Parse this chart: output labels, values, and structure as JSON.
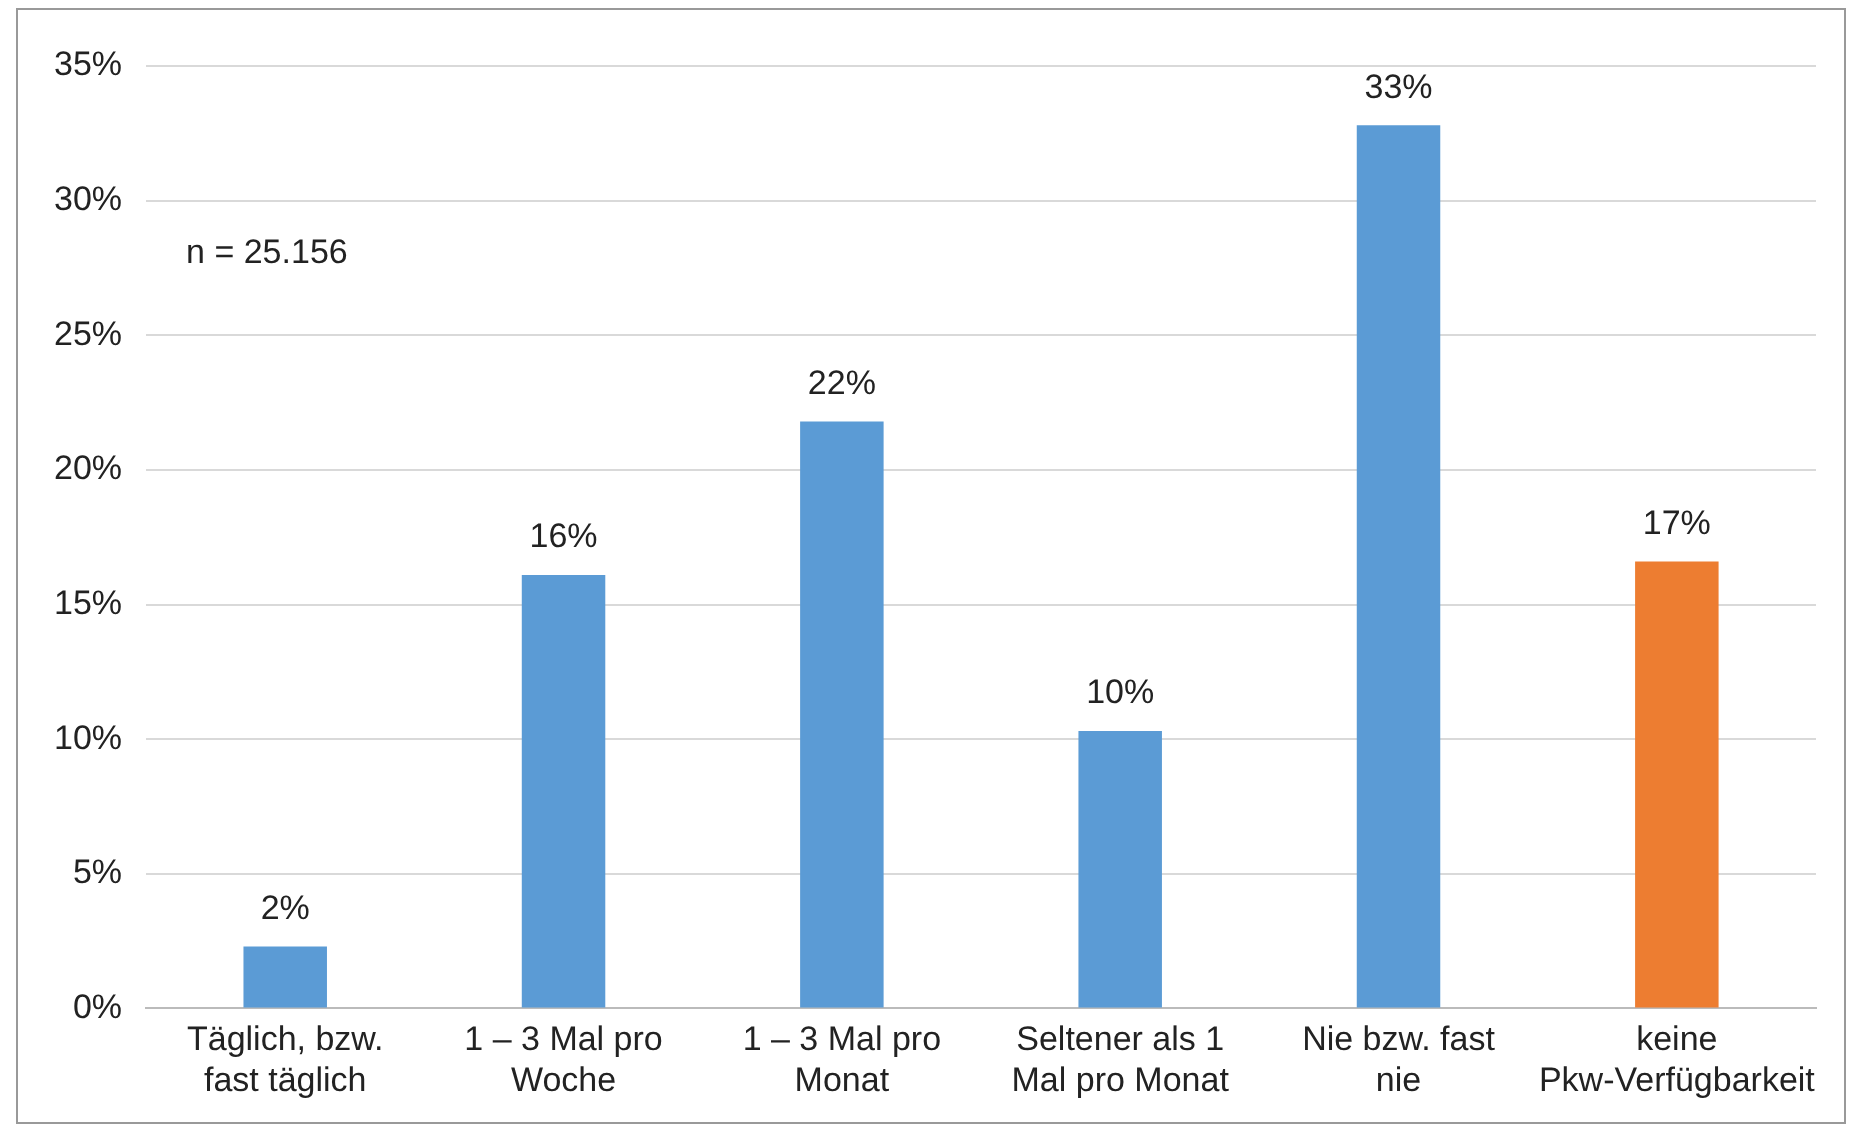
{
  "chart_data": {
    "type": "bar",
    "categories": [
      "Täglich, bzw. fast täglich",
      "1 – 3 Mal pro Woche",
      "1 – 3 Mal pro Monat",
      "Seltener als 1 Mal pro Monat",
      "Nie bzw. fast nie",
      "keine Pkw-Verfügbarkeit"
    ],
    "values": [
      2.3,
      16.1,
      21.8,
      10.3,
      32.8,
      16.6
    ],
    "colors": [
      "#5b9bd5",
      "#5b9bd5",
      "#5b9bd5",
      "#5b9bd5",
      "#5b9bd5",
      "#ed7d31"
    ],
    "value_labels": [
      "2%",
      "16%",
      "22%",
      "10%",
      "33%",
      "17%"
    ],
    "ylim": [
      0,
      35
    ],
    "yticks": [
      {
        "value": 0,
        "label": "0%"
      },
      {
        "value": 5,
        "label": "5%"
      },
      {
        "value": 10,
        "label": "10%"
      },
      {
        "value": 15,
        "label": "15%"
      },
      {
        "value": 20,
        "label": "20%"
      },
      {
        "value": 25,
        "label": "25%"
      },
      {
        "value": 30,
        "label": "30%"
      },
      {
        "value": 35,
        "label": "35%"
      }
    ],
    "grid": "y",
    "annotations": [
      "n = 25.156"
    ]
  }
}
